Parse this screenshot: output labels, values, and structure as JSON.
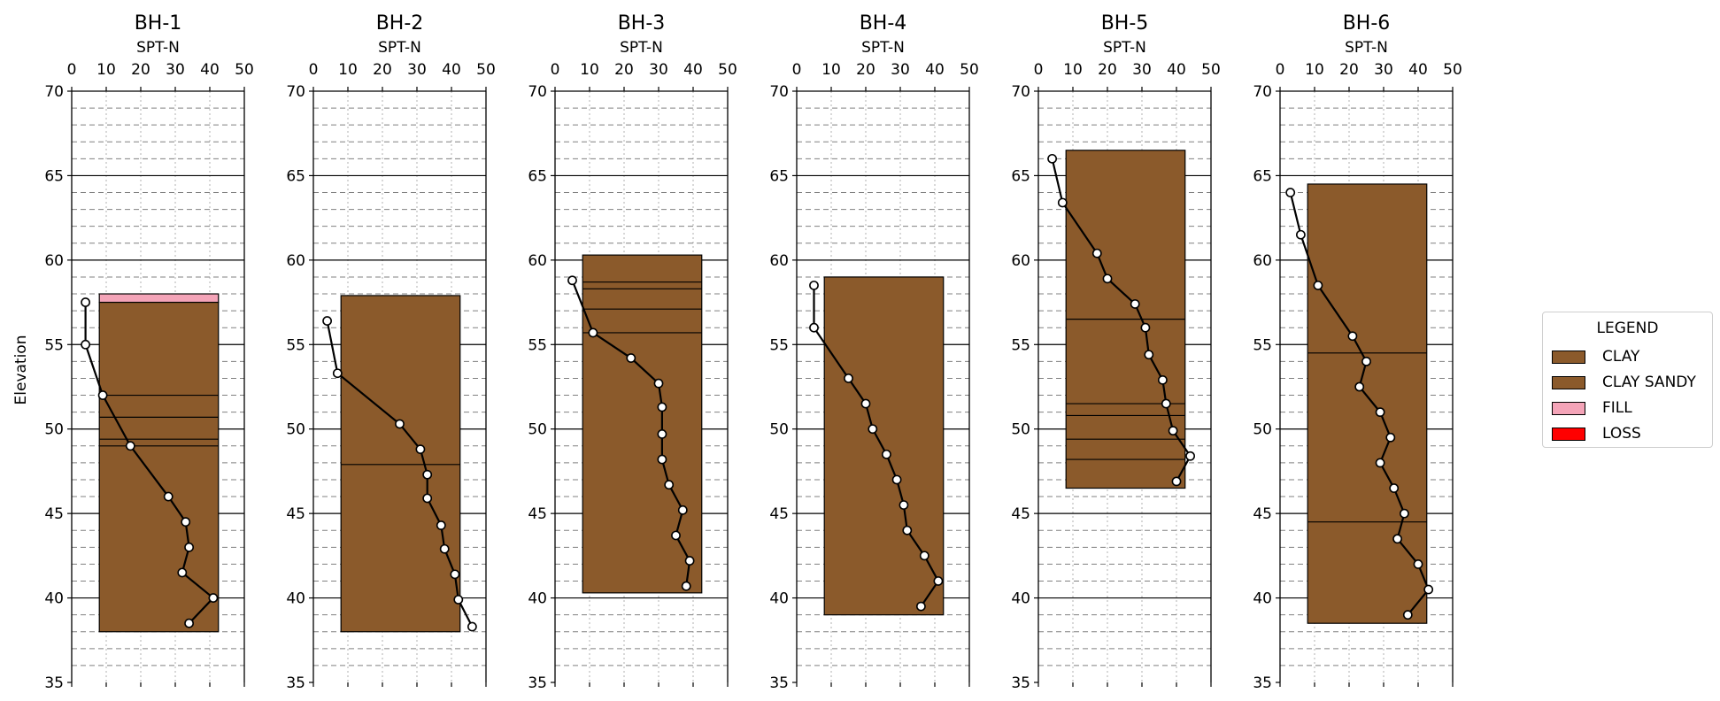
{
  "chart_data": {
    "type": "scatter",
    "ylabel": "Elevation",
    "xlabel": "SPT-N",
    "xlim": [
      0,
      50
    ],
    "ylim": [
      35,
      70
    ],
    "xticks": [
      "0",
      "10",
      "20",
      "30",
      "40",
      "50"
    ],
    "yticks": [
      "35",
      "40",
      "45",
      "50",
      "55",
      "60",
      "65",
      "70"
    ],
    "legend": {
      "title": "LEGEND",
      "position": "right",
      "items": [
        {
          "label": "CLAY",
          "color": "#8b5a2b"
        },
        {
          "label": "CLAY SANDY",
          "color": "#8b5a2b"
        },
        {
          "label": "FILL",
          "color": "#f4a4b8"
        },
        {
          "label": "LOSS",
          "color": "#ff0000"
        }
      ]
    },
    "colors": {
      "clay": "#8b5a2b",
      "fill": "#f4a4b8",
      "loss": "#ff0000"
    },
    "boreholes": [
      {
        "name": "BH-1",
        "layers": [
          {
            "material": "FILL",
            "top": 58.0,
            "bottom": 57.5
          },
          {
            "material": "CLAY",
            "top": 57.5,
            "bottom": 38.0
          }
        ],
        "boundaries": [
          52.0,
          50.7,
          49.4,
          49.0
        ],
        "spt": [
          [
            4,
            57.5
          ],
          [
            4,
            55
          ],
          [
            9,
            52
          ],
          [
            17,
            49
          ],
          [
            28,
            46
          ],
          [
            33,
            44.5
          ],
          [
            34,
            43
          ],
          [
            32,
            41.5
          ],
          [
            41,
            40
          ],
          [
            34,
            38.5
          ]
        ]
      },
      {
        "name": "BH-2",
        "layers": [
          {
            "material": "CLAY",
            "top": 57.9,
            "bottom": 38.0
          }
        ],
        "boundaries": [
          47.9
        ],
        "spt": [
          [
            4,
            56.4
          ],
          [
            7,
            53.3
          ],
          [
            25,
            50.3
          ],
          [
            31,
            48.8
          ],
          [
            33,
            47.3
          ],
          [
            33,
            45.9
          ],
          [
            37,
            44.3
          ],
          [
            38,
            42.9
          ],
          [
            41,
            41.4
          ],
          [
            42,
            39.9
          ],
          [
            46,
            38.3
          ]
        ]
      },
      {
        "name": "BH-3",
        "layers": [
          {
            "material": "CLAY",
            "top": 60.3,
            "bottom": 40.3
          }
        ],
        "boundaries": [
          58.7,
          58.3,
          57.1,
          55.7
        ],
        "spt": [
          [
            5,
            58.8
          ],
          [
            11,
            55.7
          ],
          [
            22,
            54.2
          ],
          [
            30,
            52.7
          ],
          [
            31,
            51.3
          ],
          [
            31,
            49.7
          ],
          [
            31,
            48.2
          ],
          [
            33,
            46.7
          ],
          [
            37,
            45.2
          ],
          [
            35,
            43.7
          ],
          [
            39,
            42.2
          ],
          [
            38,
            40.7
          ]
        ]
      },
      {
        "name": "BH-4",
        "layers": [
          {
            "material": "CLAY",
            "top": 59.0,
            "bottom": 39.0
          }
        ],
        "boundaries": [],
        "spt": [
          [
            5,
            58.5
          ],
          [
            5,
            56
          ],
          [
            15,
            53
          ],
          [
            20,
            51.5
          ],
          [
            22,
            50
          ],
          [
            26,
            48.5
          ],
          [
            29,
            47
          ],
          [
            31,
            45.5
          ],
          [
            32,
            44
          ],
          [
            37,
            42.5
          ],
          [
            41,
            41
          ],
          [
            36,
            39.5
          ]
        ]
      },
      {
        "name": "BH-5",
        "layers": [
          {
            "material": "CLAY",
            "top": 66.5,
            "bottom": 46.5
          }
        ],
        "boundaries": [
          56.5,
          51.5,
          50.8,
          49.4,
          48.2
        ],
        "spt": [
          [
            4,
            66
          ],
          [
            7,
            63.4
          ],
          [
            17,
            60.4
          ],
          [
            20,
            58.9
          ],
          [
            28,
            57.4
          ],
          [
            31,
            56
          ],
          [
            32,
            54.4
          ],
          [
            36,
            52.9
          ],
          [
            37,
            51.5
          ],
          [
            39,
            49.9
          ],
          [
            44,
            48.4
          ],
          [
            40,
            46.9
          ]
        ]
      },
      {
        "name": "BH-6",
        "layers": [
          {
            "material": "CLAY",
            "top": 64.5,
            "bottom": 38.5
          }
        ],
        "boundaries": [
          54.5,
          44.5
        ],
        "spt": [
          [
            3,
            64
          ],
          [
            6,
            61.5
          ],
          [
            11,
            58.5
          ],
          [
            21,
            55.5
          ],
          [
            25,
            54
          ],
          [
            23,
            52.5
          ],
          [
            29,
            51
          ],
          [
            32,
            49.5
          ],
          [
            29,
            48
          ],
          [
            33,
            46.5
          ],
          [
            36,
            45
          ],
          [
            34,
            43.5
          ],
          [
            40,
            42
          ],
          [
            43,
            40.5
          ],
          [
            37,
            39
          ]
        ]
      }
    ]
  }
}
